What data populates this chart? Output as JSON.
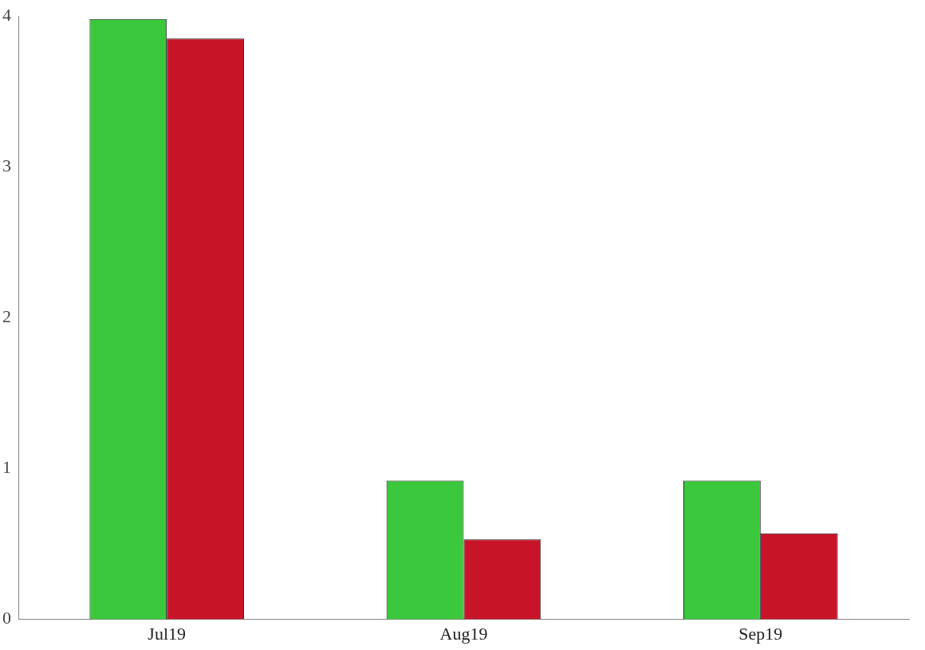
{
  "chart_data": {
    "type": "bar",
    "categories": [
      "Jul19",
      "Aug19",
      "Sep19"
    ],
    "series": [
      {
        "color": "#3cc83c",
        "values": [
          3.98,
          0.92,
          0.92
        ]
      },
      {
        "color": "#c81428",
        "values": [
          3.85,
          0.53,
          0.57
        ]
      }
    ],
    "ylim": [
      0,
      4
    ],
    "yticks": [
      0,
      1,
      2,
      3,
      4
    ],
    "grid": false,
    "legend": false
  }
}
